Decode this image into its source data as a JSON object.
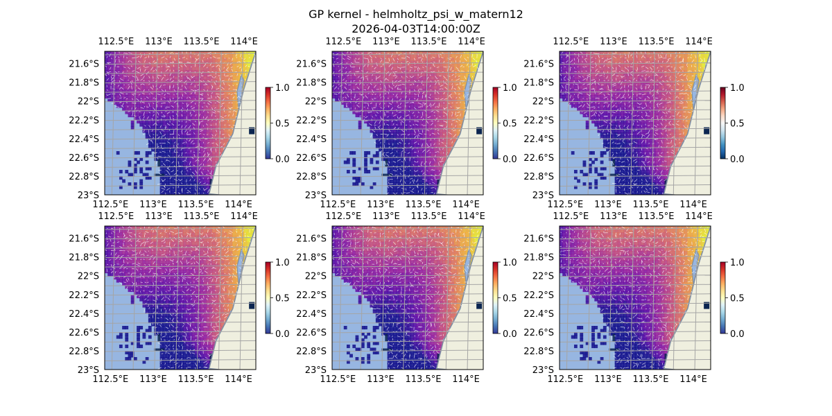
{
  "figure": {
    "title_line1": "GP kernel - helmholtz_psi_w_matern12",
    "title_line2": "2026-04-03T14:00:00Z"
  },
  "colors": {
    "ocean": "#97b6e1",
    "land": "#efefdf",
    "coast": "#7f8ea3",
    "grid": "#a5a5a5",
    "ocean_deep": "#0b2550"
  },
  "chart_data": [
    {
      "type": "heatmap",
      "panel": 1,
      "x_ticks": [
        "112.5°E",
        "113°E",
        "113.5°E",
        "114°E"
      ],
      "x_ticks_bottom": [
        "112.5°E",
        "113°E",
        "113.5°E",
        "114°E"
      ],
      "y_ticks": [
        "21.6°S",
        "21.8°S",
        "22°S",
        "22.2°S",
        "22.4°S",
        "22.6°S",
        "22.8°S",
        "23°S"
      ],
      "colorbar": {
        "min": 0.0,
        "max": 1.0,
        "ticks": [
          "0.0",
          "0.5",
          "1.0"
        ],
        "colormap": "RdYlBu_r"
      },
      "overlay_colormap": "plasma",
      "grid": true
    },
    {
      "type": "heatmap",
      "panel": 2,
      "x_ticks": [
        "112.5°E",
        "113°E",
        "113.5°E",
        "114°E"
      ],
      "x_ticks_bottom": [
        "112.5°E",
        "113°E",
        "113.5°E",
        "114°E"
      ],
      "y_ticks": [
        "21.6°S",
        "21.8°S",
        "22°S",
        "22.2°S",
        "22.4°S",
        "22.6°S",
        "22.8°S",
        "23°S"
      ],
      "colorbar": {
        "min": 0.0,
        "max": 1.0,
        "ticks": [
          "0.0",
          "0.5",
          "1.0"
        ],
        "colormap": "RdYlBu_r"
      },
      "overlay_colormap": "plasma",
      "grid": true
    },
    {
      "type": "heatmap",
      "panel": 3,
      "x_ticks": [
        "112.5°E",
        "113°E",
        "113.5°E",
        "114°E"
      ],
      "x_ticks_bottom": [
        "112.5°E",
        "113°E",
        "113.5°E",
        "114°E"
      ],
      "y_ticks": [
        "21.6°S",
        "21.8°S",
        "22°S",
        "22.2°S",
        "22.4°S",
        "22.6°S",
        "22.8°S",
        "23°S"
      ],
      "colorbar": {
        "min": 0.0,
        "max": 1.0,
        "ticks": [
          "0.0",
          "0.5",
          "1.0"
        ],
        "colormap": "RdBu_r"
      },
      "overlay_colormap": "plasma",
      "grid": true
    },
    {
      "type": "heatmap",
      "panel": 4,
      "x_ticks": [
        "112.5°E",
        "113°E",
        "113.5°E",
        "114°E"
      ],
      "x_ticks_bottom": [
        "112.5°E",
        "113°E",
        "113.5°E",
        "114°E"
      ],
      "y_ticks": [
        "21.6°S",
        "21.8°S",
        "22°S",
        "22.2°S",
        "22.4°S",
        "22.6°S",
        "22.8°S",
        "23°S"
      ],
      "colorbar": {
        "min": 0.0,
        "max": 1.0,
        "ticks": [
          "0.0",
          "0.5",
          "1.0"
        ],
        "colormap": "RdYlBu_r"
      },
      "overlay_colormap": "plasma",
      "grid": true
    },
    {
      "type": "heatmap",
      "panel": 5,
      "x_ticks": [
        "112.5°E",
        "113°E",
        "113.5°E",
        "114°E"
      ],
      "x_ticks_bottom": [
        "112.5°E",
        "113°E",
        "113.5°E",
        "114°E"
      ],
      "y_ticks": [
        "21.6°S",
        "21.8°S",
        "22°S",
        "22.2°S",
        "22.4°S",
        "22.6°S",
        "22.8°S",
        "23°S"
      ],
      "colorbar": {
        "min": 0.0,
        "max": 1.0,
        "ticks": [
          "0.0",
          "0.5",
          "1.0"
        ],
        "colormap": "RdYlBu_r"
      },
      "overlay_colormap": "plasma",
      "grid": true
    },
    {
      "type": "heatmap",
      "panel": 6,
      "x_ticks": [
        "112.5°E",
        "113°E",
        "113.5°E",
        "114°E"
      ],
      "x_ticks_bottom": [
        "112.5°E",
        "113°E",
        "113.5°E",
        "114°E"
      ],
      "y_ticks": [
        "21.6°S",
        "21.8°S",
        "22°S",
        "22.2°S",
        "22.4°S",
        "22.6°S",
        "22.8°S",
        "23°S"
      ],
      "colorbar": {
        "min": 0.0,
        "max": 1.0,
        "ticks": [
          "0.0",
          "0.5",
          "1.0"
        ],
        "colormap": "RdYlBu_r"
      },
      "overlay_colormap": "plasma",
      "grid": true
    }
  ]
}
